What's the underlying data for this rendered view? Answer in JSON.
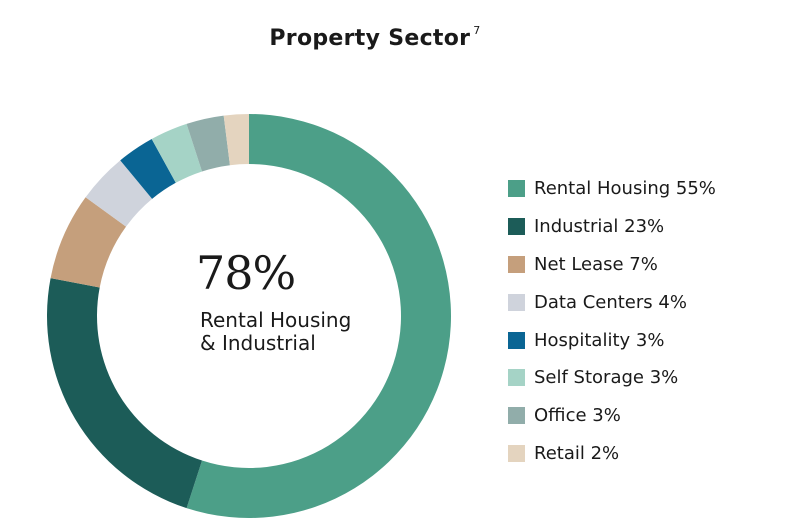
{
  "title": "Property Sector",
  "title_note": "7",
  "center": {
    "value": "78%",
    "label": "Rental Housing & Industrial"
  },
  "colors": {
    "rental_housing": "#4c9f88",
    "industrial": "#1c5c58",
    "net_lease": "#c59f7c",
    "data_centers": "#cfd3dc",
    "hospitality": "#0a6594",
    "self_storage": "#a5d3c6",
    "office": "#91adaa",
    "retail": "#e4d4bf"
  },
  "chart_data": {
    "type": "pie",
    "style": "donut",
    "title": "Property Sector",
    "legend_position": "right",
    "slices": [
      {
        "label": "Rental Housing",
        "value": 55,
        "display": "Rental Housing 55%",
        "color": "#4c9f88"
      },
      {
        "label": "Industrial",
        "value": 23,
        "display": "Industrial 23%",
        "color": "#1c5c58"
      },
      {
        "label": "Net Lease",
        "value": 7,
        "display": "Net Lease 7%",
        "color": "#c59f7c"
      },
      {
        "label": "Data Centers",
        "value": 4,
        "display": "Data Centers 4%",
        "color": "#cfd3dc"
      },
      {
        "label": "Hospitality",
        "value": 3,
        "display": "Hospitality 3%",
        "color": "#0a6594"
      },
      {
        "label": "Self Storage",
        "value": 3,
        "display": "Self Storage 3%",
        "color": "#a5d3c6"
      },
      {
        "label": "Office",
        "value": 3,
        "display": "Office 3%",
        "color": "#91adaa"
      },
      {
        "label": "Retail",
        "value": 2,
        "display": "Retail 2%",
        "color": "#e4d4bf"
      }
    ]
  }
}
